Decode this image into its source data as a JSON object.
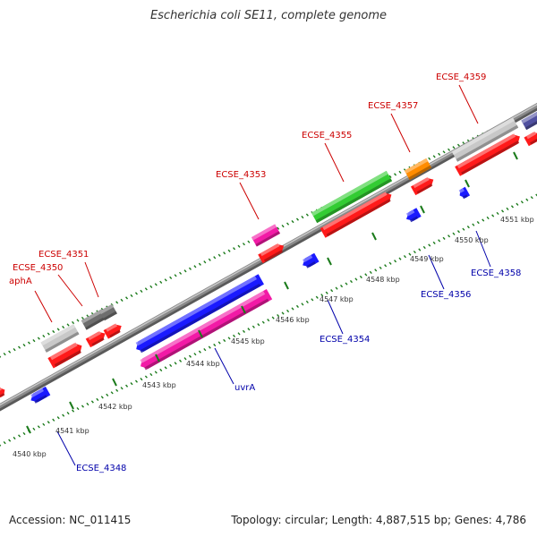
{
  "title": "Escherichia coli SE11, complete genome",
  "footer": {
    "accession": "Accession: NC_011415",
    "summary": "Topology: circular; Length: 4,887,515 bp; Genes: 4,786"
  },
  "colors": {
    "background": "#ffffff",
    "backbone": "#8a8a8a",
    "forward_label": "#cc0000",
    "reverse_label": "#0000aa",
    "tick": "#1a7a1a",
    "tick_label": "#333333",
    "gene_red": "#ff1a1a",
    "gene_blue": "#1a1aff",
    "gene_pink": "#f21aa6",
    "gene_green": "#33cc33",
    "gene_gray": "#c8c8c8",
    "gene_darkgray": "#6e6e6e",
    "gene_orange": "#ff8c00",
    "gene_purple": "#5050a0"
  },
  "scale": {
    "unit": "kbp",
    "tick_labels": [
      "4540 kbp",
      "4541 kbp",
      "4542 kbp",
      "4543 kbp",
      "4544 kbp",
      "4545 kbp",
      "4546 kbp",
      "4547 kbp",
      "4548 kbp",
      "4549 kbp",
      "4550 kbp",
      "4551 kbp"
    ]
  },
  "genes_forward": [
    {
      "label": "aphA",
      "color": "gene_gray"
    },
    {
      "label": "ECSE_4350",
      "color": "gene_darkgray"
    },
    {
      "label": "ECSE_4351",
      "color": "gene_darkgray"
    },
    {
      "label": "ECSE_4353",
      "color": "gene_pink"
    },
    {
      "label": "ECSE_4355",
      "color": "gene_green"
    },
    {
      "label": "ECSE_4357",
      "color": "gene_orange"
    },
    {
      "label": "ECSE_4359",
      "color": "gene_gray"
    }
  ],
  "genes_reverse": [
    {
      "label": "ECSE_4348",
      "color": "gene_blue"
    },
    {
      "label": "uvrA",
      "color": "gene_blue"
    },
    {
      "label": "ECSE_4354",
      "color": "gene_blue"
    },
    {
      "label": "ECSE_4356",
      "color": "gene_blue"
    },
    {
      "label": "ECSE_4358",
      "color": "gene_blue"
    }
  ]
}
